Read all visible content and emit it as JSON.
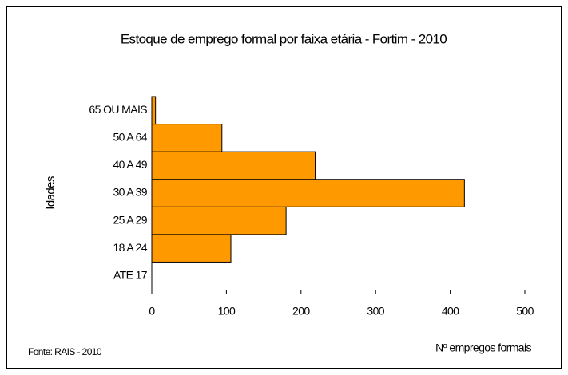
{
  "chart_data": {
    "type": "bar",
    "orientation": "horizontal",
    "title": "Estoque de emprego formal por faixa etária - Fortim - 2010",
    "x_label": "Nº empregos formais",
    "y_label": "Idades",
    "source": "Fonte: RAIS - 2010",
    "categories": [
      "ATE 17",
      "18 A 24",
      "25 A 29",
      "30 A 39",
      "40 A 49",
      "50 A 64",
      "65 OU MAIS"
    ],
    "values": [
      0,
      106,
      180,
      419,
      219,
      94,
      5
    ],
    "color": "#ff9900",
    "xlim": [
      0,
      500
    ],
    "xticks": [
      0,
      100,
      200,
      300,
      400,
      500
    ]
  }
}
